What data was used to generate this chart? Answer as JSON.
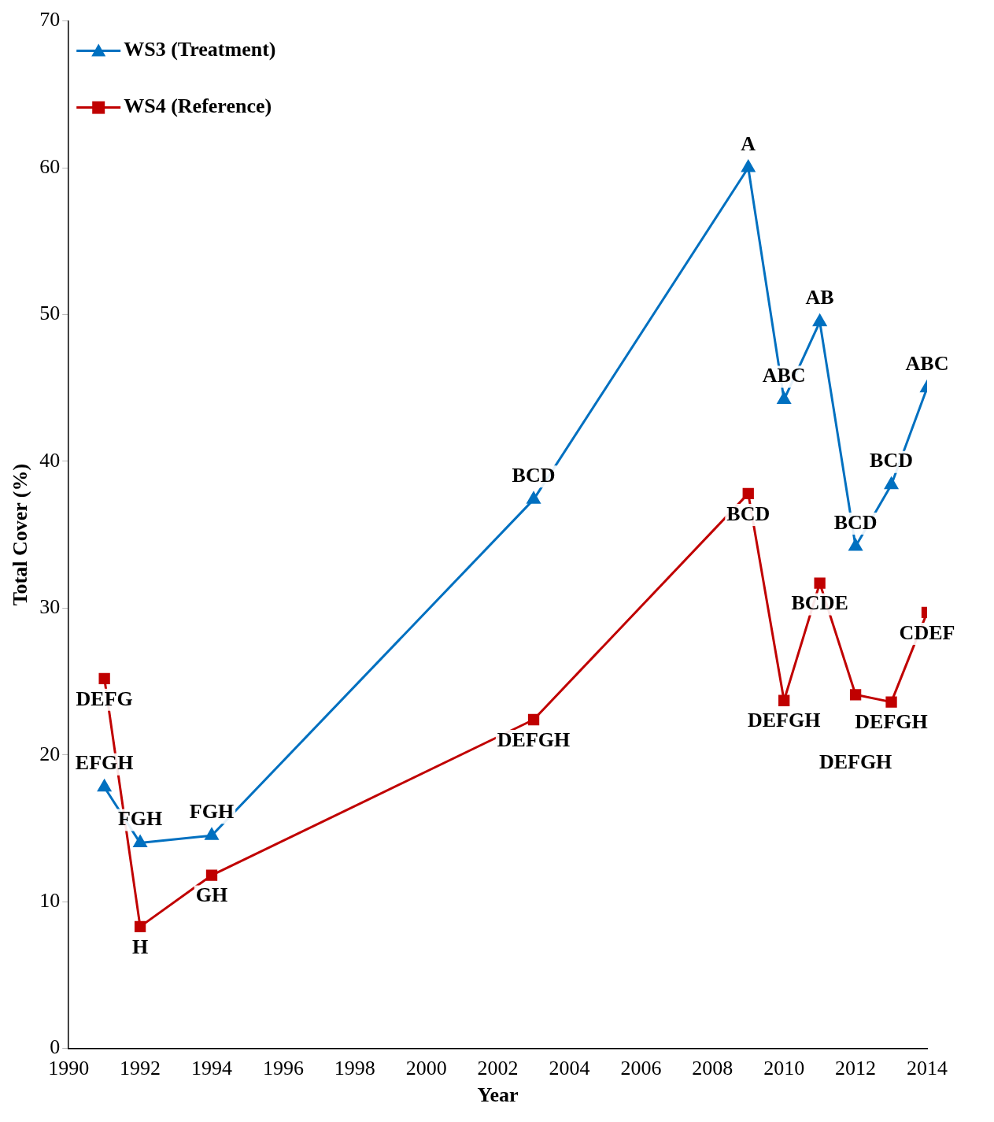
{
  "chart_data": {
    "type": "line",
    "xlabel": "Year",
    "ylabel": "Total Cover (%)",
    "x": [
      1991,
      1992,
      1994,
      2003,
      2009,
      2010,
      2011,
      2012,
      2013,
      2014
    ],
    "series": [
      {
        "name": "WS3 (Treatment)",
        "color": "#0070c0",
        "marker": "triangle",
        "values": [
          17.8,
          14.0,
          14.5,
          37.4,
          60.0,
          44.2,
          49.5,
          34.2,
          38.4,
          45.0
        ]
      },
      {
        "name": "WS4 (Reference)",
        "color": "#c00000",
        "marker": "square",
        "values": [
          25.2,
          8.3,
          11.8,
          22.4,
          37.8,
          23.7,
          31.7,
          24.1,
          23.6,
          29.7
        ]
      }
    ],
    "xlim": [
      1990,
      2014
    ],
    "xticks": [
      1990,
      1992,
      1994,
      1996,
      1998,
      2000,
      2002,
      2004,
      2006,
      2008,
      2010,
      2012,
      2014
    ],
    "ylim": [
      0,
      70
    ],
    "yticks": [
      0,
      10,
      20,
      30,
      40,
      50,
      60,
      70
    ],
    "grid": false,
    "legend": "top left",
    "line_style": "solid",
    "annotations": [
      {
        "text": "EFGH",
        "x": 1991,
        "y": 17.8
      },
      {
        "text": "FGH",
        "x": 1992,
        "y": 14.0
      },
      {
        "text": "FGH",
        "x": 1994,
        "y": 14.5
      },
      {
        "text": "BCD",
        "x": 2003,
        "y": 37.4
      },
      {
        "text": "A",
        "x": 2009,
        "y": 60.0
      },
      {
        "text": "ABC",
        "x": 2010,
        "y": 44.2
      },
      {
        "text": "AB",
        "x": 2011,
        "y": 49.5
      },
      {
        "text": "BCD",
        "x": 2012,
        "y": 34.2
      },
      {
        "text": "BCD",
        "x": 2013,
        "y": 38.4
      },
      {
        "text": "ABC",
        "x": 2014,
        "y": 45.0
      },
      {
        "text": "DEFG",
        "x": 1991,
        "y": 25.2
      },
      {
        "text": "H",
        "x": 1992,
        "y": 8.3
      },
      {
        "text": "GH",
        "x": 1994,
        "y": 11.8
      },
      {
        "text": "DEFGH",
        "x": 2003,
        "y": 22.4
      },
      {
        "text": "BCD",
        "x": 2009,
        "y": 37.8
      },
      {
        "text": "DEFGH",
        "x": 2010,
        "y": 23.7
      },
      {
        "text": "BCDE",
        "x": 2011,
        "y": 31.7
      },
      {
        "text": "DEFGH",
        "x": 2012,
        "y": 24.1
      },
      {
        "text": "DEFGH",
        "x": 2013,
        "y": 23.6
      },
      {
        "text": "CDEF",
        "x": 2014,
        "y": 29.7
      }
    ]
  }
}
